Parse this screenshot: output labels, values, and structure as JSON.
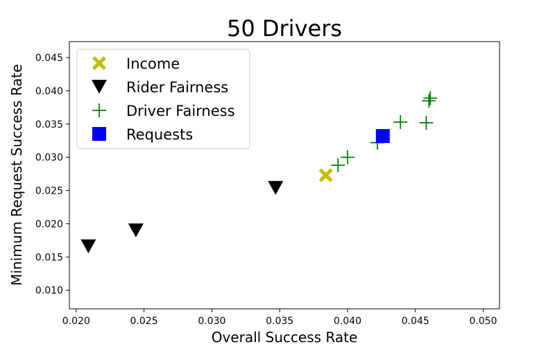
{
  "chart_data": {
    "type": "scatter",
    "title": "50 Drivers",
    "xlabel": "Overall Success Rate",
    "ylabel": "Minimum Request Success Rate",
    "xlim": [
      0.0195,
      0.0512
    ],
    "ylim": [
      0.0072,
      0.0474
    ],
    "xticks": [
      "0.020",
      "0.025",
      "0.030",
      "0.035",
      "0.040",
      "0.045",
      "0.050"
    ],
    "yticks": [
      "0.010",
      "0.015",
      "0.020",
      "0.025",
      "0.030",
      "0.035",
      "0.040",
      "0.045"
    ],
    "grid": false,
    "legend_position": "top-left",
    "series": [
      {
        "name": "Income",
        "marker": "x-filled",
        "color": "#bfbf00",
        "points": [
          [
            0.0384,
            0.0273
          ]
        ]
      },
      {
        "name": "Rider Fairness",
        "marker": "triangle-down",
        "color": "#000000",
        "points": [
          [
            0.0209,
            0.0166
          ],
          [
            0.0244,
            0.019
          ],
          [
            0.0347,
            0.0254
          ]
        ]
      },
      {
        "name": "Driver Fairness",
        "marker": "plus",
        "color": "#008000",
        "points": [
          [
            0.0393,
            0.0288
          ],
          [
            0.04,
            0.03
          ],
          [
            0.0422,
            0.0322
          ],
          [
            0.0439,
            0.0353
          ],
          [
            0.0458,
            0.0352
          ],
          [
            0.046,
            0.0385
          ],
          [
            0.0461,
            0.0389
          ]
        ]
      },
      {
        "name": "Requests",
        "marker": "square",
        "color": "#0000ff",
        "points": [
          [
            0.0426,
            0.0332
          ]
        ]
      }
    ]
  }
}
